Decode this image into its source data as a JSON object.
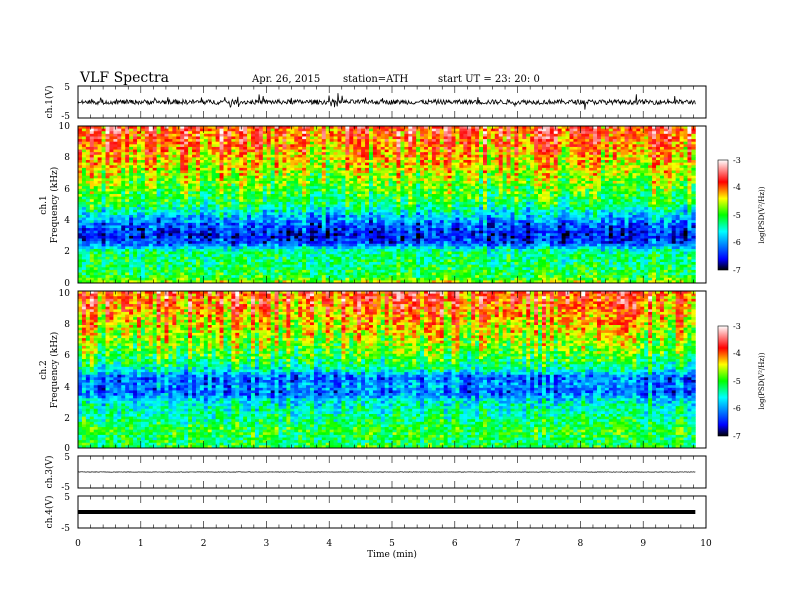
{
  "header": {
    "title": "VLF  Spectra",
    "date": "Apr. 26, 2015",
    "station": "station=ATH",
    "start": "start  UT  =   23: 20: 0"
  },
  "colors": {
    "colormap": [
      "#000000",
      "#0000ff",
      "#00ffff",
      "#00ff00",
      "#ffff00",
      "#ff0000",
      "#ffffff"
    ],
    "trace": "#000000"
  },
  "chart_data": [
    {
      "type": "line",
      "panel": "ch1-waveform",
      "ylabel": "ch.1(V)",
      "ylim": [
        -5,
        5
      ],
      "yticks": [
        "5",
        "-5"
      ],
      "xlim": [
        0,
        10
      ],
      "series": [
        {
          "x_range": [
            0,
            9.83
          ],
          "approx_level": 0,
          "approx_amplitude": 1.5
        }
      ]
    },
    {
      "type": "heatmap",
      "panel": "ch1-spectrogram",
      "ylabel": "ch.1\nFrequency  (kHz)",
      "ylim": [
        0,
        10
      ],
      "yticks": [
        "0",
        "2",
        "4",
        "6",
        "8",
        "10"
      ],
      "xlim": [
        0,
        10
      ],
      "data_x_range": [
        0,
        9.83
      ],
      "colorbar": {
        "label": "log(PSD(V²/Hz))",
        "range": [
          -7,
          -3
        ],
        "ticks": [
          "-3",
          "-4",
          "-5",
          "-6",
          "-7"
        ]
      },
      "profile": [
        {
          "f": 0.0,
          "logpsd": -4.5
        },
        {
          "f": 0.3,
          "logpsd": -5.0
        },
        {
          "f": 1.0,
          "logpsd": -5.2
        },
        {
          "f": 2.0,
          "logpsd": -5.3
        },
        {
          "f": 2.5,
          "logpsd": -6.3
        },
        {
          "f": 3.0,
          "logpsd": -6.5
        },
        {
          "f": 3.6,
          "logpsd": -6.3
        },
        {
          "f": 4.0,
          "logpsd": -6.0
        },
        {
          "f": 5.0,
          "logpsd": -5.2
        },
        {
          "f": 6.0,
          "logpsd": -4.9
        },
        {
          "f": 7.0,
          "logpsd": -4.6
        },
        {
          "f": 8.0,
          "logpsd": -4.3
        },
        {
          "f": 9.0,
          "logpsd": -4.0
        },
        {
          "f": 10.0,
          "logpsd": -3.8
        }
      ]
    },
    {
      "type": "heatmap",
      "panel": "ch2-spectrogram",
      "ylabel": "ch.2\nFrequency  (kHz)",
      "ylim": [
        0,
        10
      ],
      "yticks": [
        "0",
        "2",
        "4",
        "6",
        "8",
        "10"
      ],
      "xlim": [
        0,
        10
      ],
      "data_x_range": [
        0,
        9.83
      ],
      "colorbar": {
        "label": "log(PSD(V²/Hz))",
        "range": [
          -7,
          -3
        ],
        "ticks": [
          "-3",
          "-4",
          "-5",
          "-6",
          "-7"
        ]
      },
      "profile": [
        {
          "f": 0.0,
          "logpsd": -5.0
        },
        {
          "f": 0.5,
          "logpsd": -5.2
        },
        {
          "f": 1.0,
          "logpsd": -5.0
        },
        {
          "f": 2.0,
          "logpsd": -5.3
        },
        {
          "f": 3.0,
          "logpsd": -5.6
        },
        {
          "f": 3.5,
          "logpsd": -6.2
        },
        {
          "f": 4.0,
          "logpsd": -6.0
        },
        {
          "f": 4.5,
          "logpsd": -6.2
        },
        {
          "f": 5.0,
          "logpsd": -5.4
        },
        {
          "f": 6.0,
          "logpsd": -4.9
        },
        {
          "f": 7.0,
          "logpsd": -4.6
        },
        {
          "f": 8.0,
          "logpsd": -4.3
        },
        {
          "f": 9.0,
          "logpsd": -4.0
        },
        {
          "f": 10.0,
          "logpsd": -3.8
        }
      ]
    },
    {
      "type": "line",
      "panel": "ch3-waveform",
      "ylabel": "ch.3(V)",
      "ylim": [
        -5,
        5
      ],
      "yticks": [
        "5",
        "-5"
      ],
      "xlim": [
        0,
        10
      ],
      "series": [
        {
          "x_range": [
            0,
            9.83
          ],
          "approx_level": 0
        }
      ]
    },
    {
      "type": "line",
      "panel": "ch4-waveform",
      "ylabel": "ch.4(V)",
      "ylim": [
        -5,
        5
      ],
      "yticks": [
        "5",
        "-5"
      ],
      "xlim": [
        0,
        10
      ],
      "xlabel": "Time  (min)",
      "xticks": [
        "0",
        "1",
        "2",
        "3",
        "4",
        "5",
        "6",
        "7",
        "8",
        "9",
        "10"
      ],
      "series": [
        {
          "x_range": [
            0,
            9.83
          ],
          "approx_level": 0
        }
      ]
    }
  ]
}
